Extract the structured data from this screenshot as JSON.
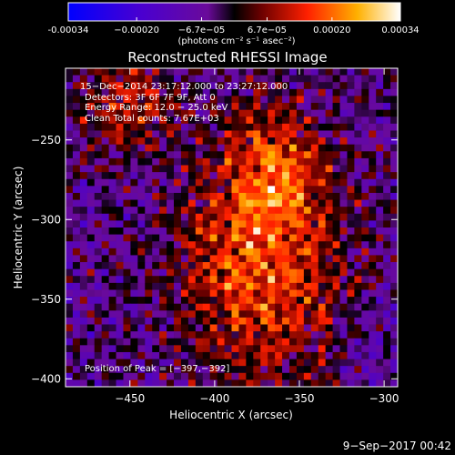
{
  "chart_data": {
    "type": "heatmap",
    "title": "Reconstructed RHESSI Image",
    "xlabel": "Heliocentric X (arcsec)",
    "ylabel": "Heliocentric Y (arcsec)",
    "xlim": [
      -488,
      -292
    ],
    "ylim": [
      -405,
      -205
    ],
    "xticks": [
      -450,
      -400,
      -350,
      -300
    ],
    "yticks": [
      -250,
      -300,
      -350,
      -400
    ],
    "xtick_labels": [
      "−450",
      "−400",
      "−350",
      "−300"
    ],
    "ytick_labels": [
      "−250",
      "−300",
      "−350",
      "−400"
    ],
    "colorbar": {
      "min": -0.00034,
      "max": 0.00034,
      "tick_values": [
        -0.00034,
        -0.0002,
        -6.7e-05,
        6.7e-05,
        0.0002,
        0.00034
      ],
      "tick_labels": [
        "-0.00034",
        "−0.00020",
        "−6.7e−05",
        "6.7e−05",
        "0.00020",
        "0.00034"
      ],
      "units_label": "(photons cm⁻² s⁻¹ asec⁻²)"
    },
    "annotations": [
      "15−Dec−2014 23:17:12.000 to 23:27:12.000",
      "Detectors: 3F 6F 7F 9F, Att 0",
      "Energy Range: 12.0 − 25.0 keV",
      "Clean     Total counts: 7.67E+03"
    ],
    "peak_label": "Position of Peak = [−397,−392]",
    "grid": false
  },
  "footer": {
    "date": "9−Sep−2017 00:42"
  },
  "colors": {
    "background": "#000000",
    "text": "#ffffff"
  }
}
